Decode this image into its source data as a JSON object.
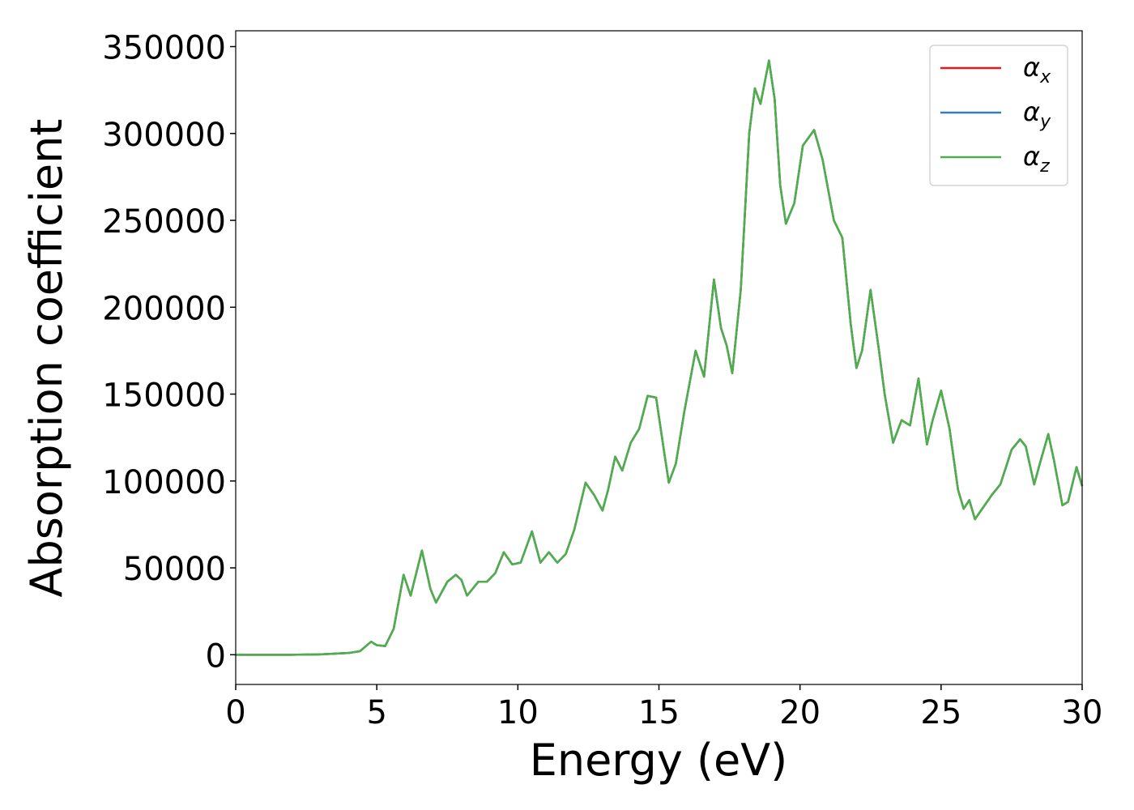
{
  "chart_data": {
    "type": "line",
    "xlabel": "Energy (eV)",
    "ylabel": "Absorption coefficient",
    "x": [
      0,
      1,
      2,
      3,
      4,
      4.4,
      4.8,
      5.0,
      5.3,
      5.6,
      5.95,
      6.2,
      6.6,
      6.9,
      7.1,
      7.5,
      7.8,
      8.0,
      8.2,
      8.6,
      8.9,
      9.2,
      9.5,
      9.8,
      10.1,
      10.5,
      10.8,
      11.1,
      11.4,
      11.7,
      12.0,
      12.4,
      12.7,
      13.0,
      13.2,
      13.45,
      13.7,
      14.0,
      14.3,
      14.6,
      14.9,
      15.2,
      15.35,
      15.6,
      15.9,
      16.3,
      16.6,
      16.95,
      17.2,
      17.4,
      17.6,
      17.9,
      18.2,
      18.4,
      18.6,
      18.9,
      19.1,
      19.3,
      19.5,
      19.8,
      20.1,
      20.5,
      20.8,
      21.2,
      21.5,
      21.8,
      22.0,
      22.2,
      22.5,
      22.8,
      23.0,
      23.3,
      23.6,
      23.9,
      24.2,
      24.5,
      24.7,
      25.0,
      25.3,
      25.6,
      25.8,
      26.0,
      26.2,
      26.5,
      26.8,
      27.1,
      27.5,
      27.8,
      28.0,
      28.3,
      28.5,
      28.8,
      29.0,
      29.3,
      29.5,
      29.8,
      30.0
    ],
    "series": [
      {
        "name": "αx",
        "color": "#e41a1c",
        "values": [
          0,
          0,
          0,
          200,
          1000,
          2000,
          7500,
          5500,
          5000,
          15000,
          46000,
          34000,
          60000,
          38000,
          30000,
          42000,
          46000,
          43000,
          34000,
          42000,
          42000,
          47000,
          59000,
          52000,
          53000,
          71000,
          53000,
          59000,
          53000,
          58000,
          72000,
          99000,
          92000,
          83000,
          95000,
          114000,
          106000,
          122000,
          130000,
          149000,
          148000,
          115000,
          99000,
          110000,
          140000,
          175000,
          160000,
          216000,
          188000,
          178000,
          162000,
          210000,
          300000,
          326000,
          317000,
          342000,
          320000,
          270000,
          248000,
          260000,
          293000,
          302000,
          285000,
          250000,
          240000,
          190000,
          165000,
          175000,
          210000,
          175000,
          150000,
          122000,
          135000,
          132000,
          159000,
          121000,
          135000,
          152000,
          130000,
          95000,
          84000,
          89000,
          78000,
          85000,
          92000,
          98000,
          118000,
          124000,
          120000,
          98000,
          110000,
          127000,
          112000,
          86000,
          88000,
          108000,
          97000
        ]
      },
      {
        "name": "αy",
        "color": "#377eb8",
        "values": [
          0,
          0,
          0,
          200,
          1000,
          2000,
          7500,
          5500,
          5000,
          15000,
          46000,
          34000,
          60000,
          38000,
          30000,
          42000,
          46000,
          43000,
          34000,
          42000,
          42000,
          47000,
          59000,
          52000,
          53000,
          71000,
          53000,
          59000,
          53000,
          58000,
          72000,
          99000,
          92000,
          83000,
          95000,
          114000,
          106000,
          122000,
          130000,
          149000,
          148000,
          115000,
          99000,
          110000,
          140000,
          175000,
          160000,
          216000,
          188000,
          178000,
          162000,
          210000,
          300000,
          326000,
          317000,
          342000,
          320000,
          270000,
          248000,
          260000,
          293000,
          302000,
          285000,
          250000,
          240000,
          190000,
          165000,
          175000,
          210000,
          175000,
          150000,
          122000,
          135000,
          132000,
          159000,
          121000,
          135000,
          152000,
          130000,
          95000,
          84000,
          89000,
          78000,
          85000,
          92000,
          98000,
          118000,
          124000,
          120000,
          98000,
          110000,
          127000,
          112000,
          86000,
          88000,
          108000,
          97000
        ]
      },
      {
        "name": "αz",
        "color": "#4daf4a",
        "values": [
          0,
          0,
          0,
          200,
          1000,
          2000,
          7500,
          5500,
          5000,
          15000,
          46000,
          34000,
          60000,
          38000,
          30000,
          42000,
          46000,
          43000,
          34000,
          42000,
          42000,
          47000,
          59000,
          52000,
          53000,
          71000,
          53000,
          59000,
          53000,
          58000,
          72000,
          99000,
          92000,
          83000,
          95000,
          114000,
          106000,
          122000,
          130000,
          149000,
          148000,
          115000,
          99000,
          110000,
          140000,
          175000,
          160000,
          216000,
          188000,
          178000,
          162000,
          210000,
          300000,
          326000,
          317000,
          342000,
          320000,
          270000,
          248000,
          260000,
          293000,
          302000,
          285000,
          250000,
          240000,
          190000,
          165000,
          175000,
          210000,
          175000,
          150000,
          122000,
          135000,
          132000,
          159000,
          121000,
          135000,
          152000,
          130000,
          95000,
          84000,
          89000,
          78000,
          85000,
          92000,
          98000,
          118000,
          124000,
          120000,
          98000,
          110000,
          127000,
          112000,
          86000,
          88000,
          108000,
          97000
        ]
      }
    ],
    "xlim": [
      0,
      30
    ],
    "xticks": [
      0,
      5,
      10,
      15,
      20,
      25,
      30
    ],
    "ylim": [
      -17100,
      359100
    ],
    "yticks": [
      0,
      50000,
      100000,
      150000,
      200000,
      250000,
      300000,
      350000
    ],
    "legend": "upper right"
  }
}
